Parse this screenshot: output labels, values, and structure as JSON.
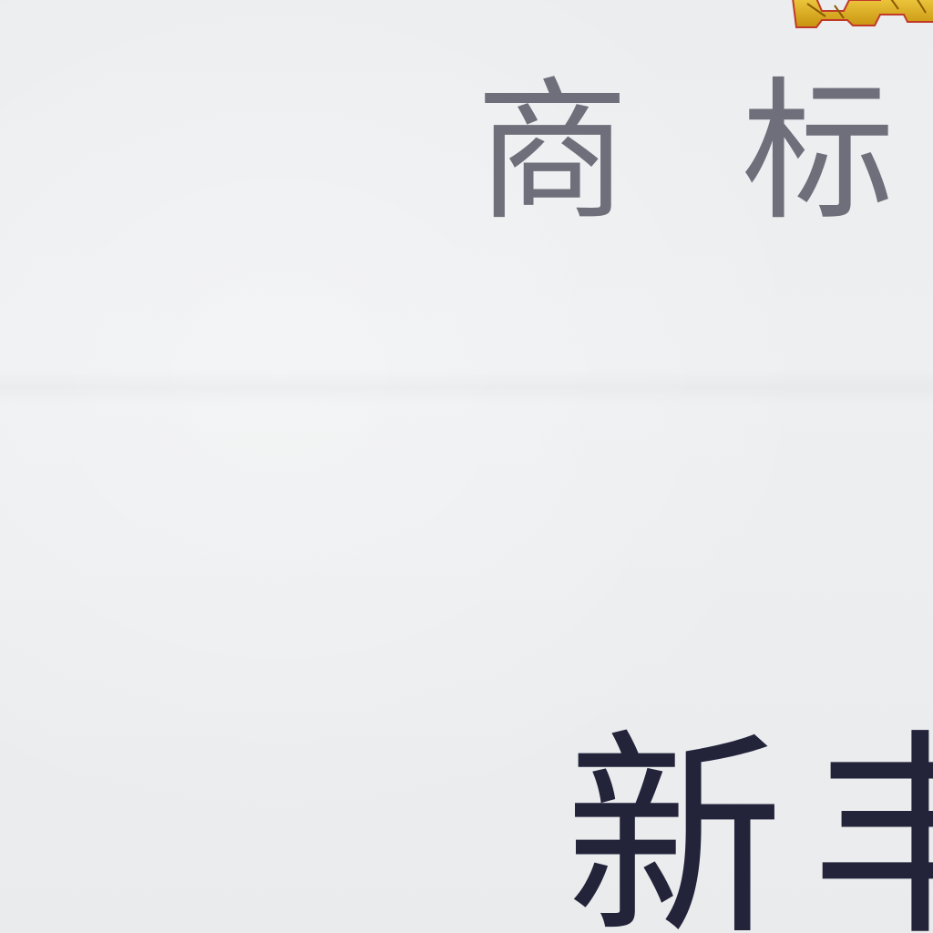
{
  "certificate": {
    "heading_chars": [
      "商",
      "标"
    ],
    "name_text": "新丰"
  },
  "colors": {
    "paper": "#eceef0",
    "heading_ink": "#6f6f7b",
    "name_ink": "#23233a",
    "emblem_gold": "#d4a017",
    "emblem_red": "#c0392b"
  },
  "icons": {
    "emblem": "gold-emblem-icon"
  }
}
